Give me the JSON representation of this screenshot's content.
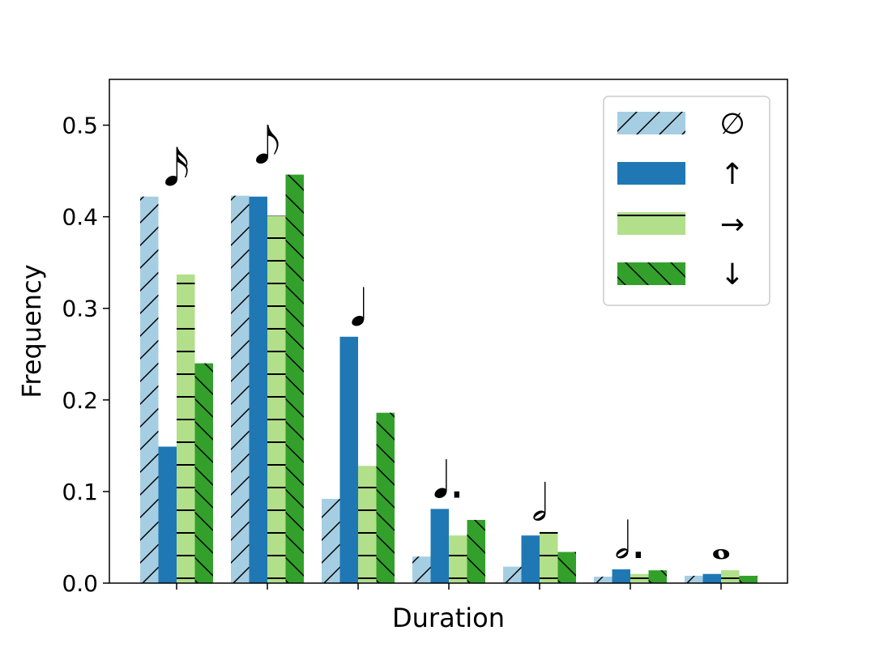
{
  "chart_data": {
    "type": "bar",
    "xlabel": "Duration",
    "ylabel": "Frequency",
    "ylim": [
      0,
      0.55
    ],
    "yticks": [
      "0.0",
      "0.1",
      "0.2",
      "0.3",
      "0.4",
      "0.5"
    ],
    "grid": false,
    "legend_position": "top-right",
    "categories": [
      "𝅘𝅥𝅯",
      "𝅘𝅥𝅮",
      "𝅘𝅥",
      "𝅘𝅥.",
      "𝅗𝅥",
      "𝅗𝅥.",
      "𝅝"
    ],
    "series": [
      {
        "name": "∅",
        "color": "#a6cee3",
        "hatch": "diagonal-up",
        "values": [
          0.422,
          0.423,
          0.092,
          0.029,
          0.018,
          0.007,
          0.008
        ]
      },
      {
        "name": "↑",
        "color": "#1f78b4",
        "hatch": "none",
        "values": [
          0.149,
          0.422,
          0.269,
          0.081,
          0.052,
          0.015,
          0.01
        ]
      },
      {
        "name": "→",
        "color": "#b2df8a",
        "hatch": "horizontal",
        "values": [
          0.337,
          0.401,
          0.128,
          0.052,
          0.056,
          0.01,
          0.014
        ]
      },
      {
        "name": "↓",
        "color": "#33a02c",
        "hatch": "diagonal-down",
        "values": [
          0.24,
          0.446,
          0.186,
          0.069,
          0.034,
          0.014,
          0.008
        ]
      }
    ]
  }
}
